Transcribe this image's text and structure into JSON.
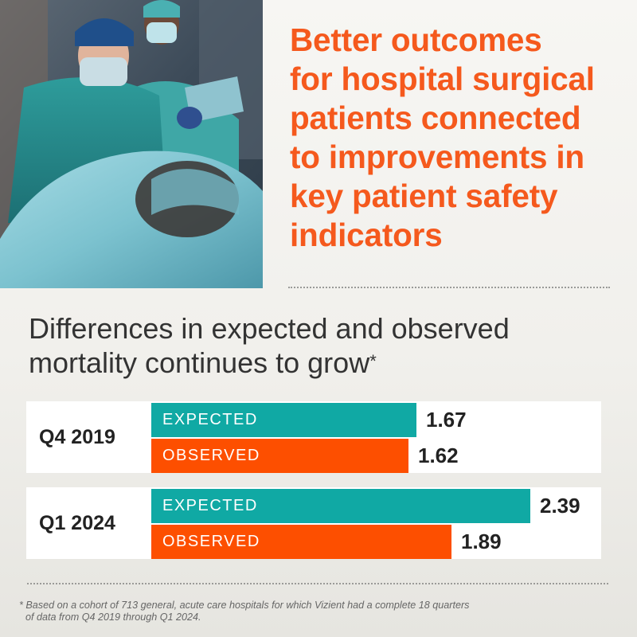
{
  "headline": [
    "Better outcomes",
    "for hospital surgical",
    "patients connected",
    "to improvements in",
    "key patient safety",
    "indicators"
  ],
  "subtitle": [
    "Differences in expected and observed",
    "mortality continues to grow"
  ],
  "subtitle_marker": "*",
  "footnote": [
    "* Based on a cohort of 713 general, acute care hospitals for which Vizient had a complete 18 quarters",
    "of data from Q4 2019 through Q1 2024."
  ],
  "photo": {
    "description_icon": "surgeons-with-patient-photo"
  },
  "colors": {
    "expected": "#10a9a4",
    "observed": "#fd4f00",
    "headline": "#f5591d"
  },
  "chart_data": {
    "type": "bar",
    "orientation": "horizontal",
    "categories": [
      "Q4 2019",
      "Q1 2024"
    ],
    "series": [
      {
        "name": "EXPECTED",
        "values": [
          1.67,
          2.39
        ]
      },
      {
        "name": "OBSERVED",
        "values": [
          1.62,
          1.89
        ]
      }
    ],
    "title": "Differences in expected and observed mortality continues to grow",
    "xlim": [
      0,
      2.6
    ],
    "grid": false,
    "legend": "inline"
  }
}
